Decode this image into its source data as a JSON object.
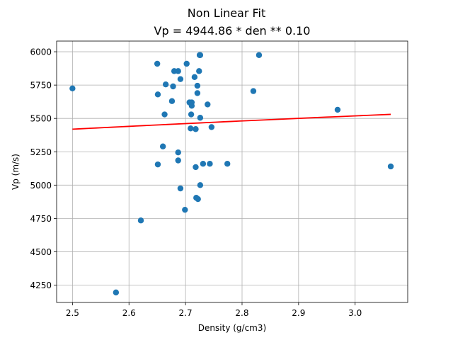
{
  "chart_data": {
    "type": "scatter",
    "title": "Non Linear Fit",
    "subtitle": "Vp = 4944.86 * den ** 0.10",
    "xlabel": "Density (g/cm3)",
    "ylabel": "Vp (m/s)",
    "xlim": [
      2.472,
      3.093
    ],
    "ylim": [
      4120,
      6080
    ],
    "xticks": [
      2.5,
      2.6,
      2.7,
      2.8,
      2.9,
      3.0
    ],
    "xtick_labels": [
      "2.5",
      "2.6",
      "2.7",
      "2.8",
      "2.9",
      "3.0"
    ],
    "yticks": [
      4250,
      4500,
      4750,
      5000,
      5250,
      5500,
      5750,
      6000
    ],
    "ytick_labels": [
      "4250",
      "4500",
      "4750",
      "5000",
      "5250",
      "5500",
      "5750",
      "6000"
    ],
    "grid": true,
    "colors": {
      "points": "#1f77b4",
      "fit_line": "#ff0000"
    },
    "series": [
      {
        "kind": "scatter",
        "points": [
          [
            2.5,
            5725
          ],
          [
            2.577,
            4195
          ],
          [
            2.621,
            4735
          ],
          [
            2.65,
            5910
          ],
          [
            2.651,
            5680
          ],
          [
            2.651,
            5155
          ],
          [
            2.66,
            5290
          ],
          [
            2.663,
            5530
          ],
          [
            2.665,
            5755
          ],
          [
            2.676,
            5630
          ],
          [
            2.678,
            5740
          ],
          [
            2.68,
            5855
          ],
          [
            2.687,
            5855
          ],
          [
            2.687,
            5245
          ],
          [
            2.687,
            5185
          ],
          [
            2.691,
            5795
          ],
          [
            2.691,
            4975
          ],
          [
            2.699,
            4815
          ],
          [
            2.702,
            5910
          ],
          [
            2.707,
            5620
          ],
          [
            2.709,
            5425
          ],
          [
            2.71,
            5530
          ],
          [
            2.711,
            5620
          ],
          [
            2.711,
            5595
          ],
          [
            2.716,
            5810
          ],
          [
            2.718,
            5420
          ],
          [
            2.718,
            5135
          ],
          [
            2.719,
            4905
          ],
          [
            2.721,
            5745
          ],
          [
            2.721,
            5690
          ],
          [
            2.722,
            4895
          ],
          [
            2.724,
            5855
          ],
          [
            2.725,
            5975
          ],
          [
            2.726,
            5975
          ],
          [
            2.726,
            5505
          ],
          [
            2.726,
            5000
          ],
          [
            2.731,
            5160
          ],
          [
            2.739,
            5605
          ],
          [
            2.743,
            5160
          ],
          [
            2.746,
            5435
          ],
          [
            2.774,
            5160
          ],
          [
            2.82,
            5705
          ],
          [
            2.83,
            5975
          ],
          [
            2.969,
            5565
          ],
          [
            3.063,
            5140
          ]
        ]
      },
      {
        "kind": "fit-line",
        "model": "Vp = 4944.86 * den ** 0.10",
        "a": 4944.86,
        "b": 0.1,
        "x_range": [
          2.5,
          3.063
        ]
      }
    ]
  }
}
